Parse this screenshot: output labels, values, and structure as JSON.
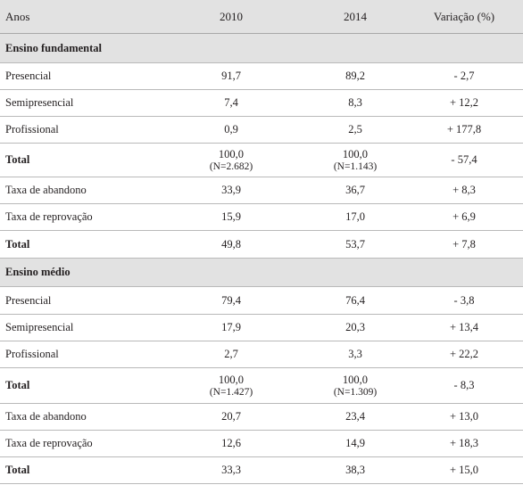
{
  "header": {
    "col0": "Anos",
    "col1": "2010",
    "col2": "2014",
    "col3": "Variação (%)"
  },
  "fundamental": {
    "title": "Ensino fundamental",
    "presencial": {
      "label": "Presencial",
      "v2010": "91,7",
      "v2014": "89,2",
      "var": "- 2,7"
    },
    "semipresencial": {
      "label": "Semipresencial",
      "v2010": "7,4",
      "v2014": "8,3",
      "var": "+ 12,2"
    },
    "profissional": {
      "label": "Profissional",
      "v2010": "0,9",
      "v2014": "2,5",
      "var": "+ 177,8"
    },
    "total1": {
      "label": "Total",
      "v2010": "100,0",
      "n2010": "(N=2.682)",
      "v2014": "100,0",
      "n2014": "(N=1.143)",
      "var": "- 57,4"
    },
    "abandono": {
      "label": "Taxa de abandono",
      "v2010": "33,9",
      "v2014": "36,7",
      "var": "+ 8,3"
    },
    "reprovacao": {
      "label": "Taxa de reprovação",
      "v2010": "15,9",
      "v2014": "17,0",
      "var": "+ 6,9"
    },
    "total2": {
      "label": "Total",
      "v2010": "49,8",
      "v2014": "53,7",
      "var": "+ 7,8"
    }
  },
  "medio": {
    "title": "Ensino médio",
    "presencial": {
      "label": "Presencial",
      "v2010": "79,4",
      "v2014": "76,4",
      "var": "- 3,8"
    },
    "semipresencial": {
      "label": "Semipresencial",
      "v2010": "17,9",
      "v2014": "20,3",
      "var": "+ 13,4"
    },
    "profissional": {
      "label": "Profissional",
      "v2010": "2,7",
      "v2014": "3,3",
      "var": "+ 22,2"
    },
    "total1": {
      "label": "Total",
      "v2010": "100,0",
      "n2010": "(N=1.427)",
      "v2014": "100,0",
      "n2014": "(N=1.309)",
      "var": "- 8,3"
    },
    "abandono": {
      "label": "Taxa de abandono",
      "v2010": "20,7",
      "v2014": "23,4",
      "var": "+ 13,0"
    },
    "reprovacao": {
      "label": "Taxa de reprovação",
      "v2010": "12,6",
      "v2014": "14,9",
      "var": "+ 18,3"
    },
    "total2": {
      "label": "Total",
      "v2010": "33,3",
      "v2014": "38,3",
      "var": "+ 15,0"
    }
  }
}
